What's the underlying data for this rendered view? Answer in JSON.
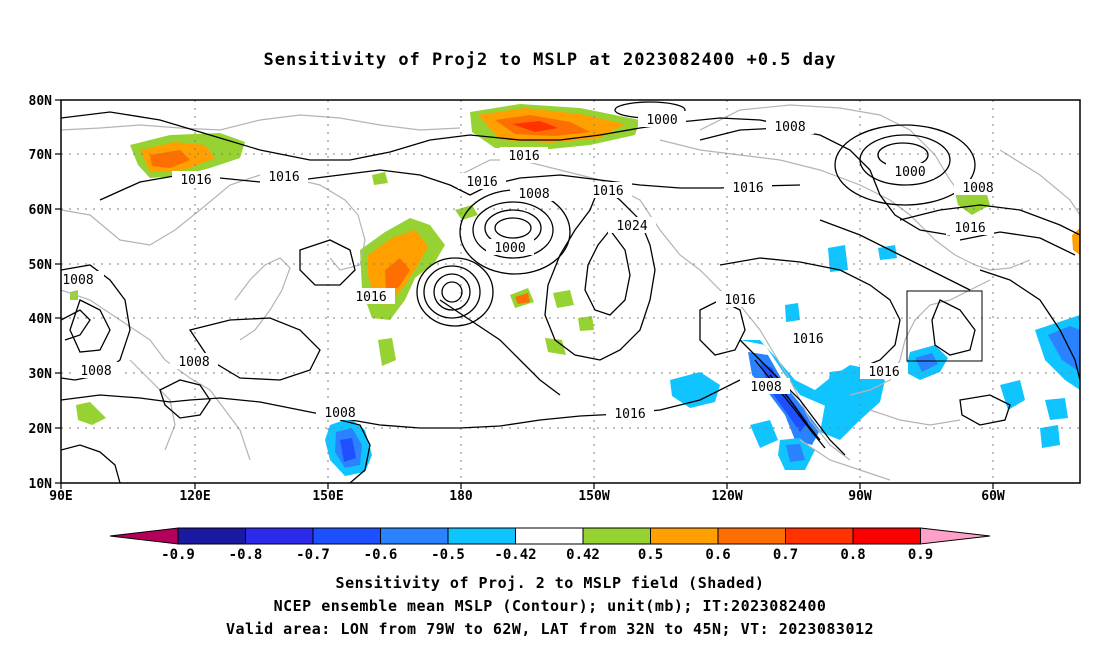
{
  "title": "Sensitivity of Proj2 to MSLP at 2023082400 +0.5 day",
  "lat_labels": [
    "80N",
    "70N",
    "60N",
    "50N",
    "40N",
    "30N",
    "20N",
    "10N"
  ],
  "lon_labels": [
    "90E",
    "120E",
    "150E",
    "180",
    "150W",
    "120W",
    "90W",
    "60W"
  ],
  "colorbar": {
    "labels": [
      "-0.9",
      "-0.8",
      "-0.7",
      "-0.6",
      "-0.5",
      "-0.42",
      "0.42",
      "0.5",
      "0.6",
      "0.7",
      "0.8",
      "0.9"
    ],
    "colors": [
      "#b4005a",
      "#1a1aa0",
      "#2a2ae8",
      "#1e50ff",
      "#2a82ff",
      "#10c4ff",
      "#ffffff",
      "#96d232",
      "#ffa000",
      "#ff6e00",
      "#ff3200",
      "#fa0000",
      "#ffa0c8"
    ]
  },
  "contour_labels": [
    "1000",
    "1008",
    "1016",
    "1016",
    "1016",
    "1016",
    "1008",
    "1000",
    "1016",
    "1024",
    "1016",
    "1016",
    "1008",
    "1008",
    "1008",
    "1008",
    "1016",
    "1016",
    "1008",
    "1000",
    "1008",
    "1016",
    "1016",
    "1016"
  ],
  "caption": {
    "line1": "Sensitivity of Proj. 2 to MSLP field (Shaded)",
    "line2": "NCEP ensemble mean MSLP (Contour); unit(mb); IT:2023082400",
    "line3": "Valid area: LON from 79W to 62W, LAT from 32N to 45N; VT: 2023083012"
  }
}
